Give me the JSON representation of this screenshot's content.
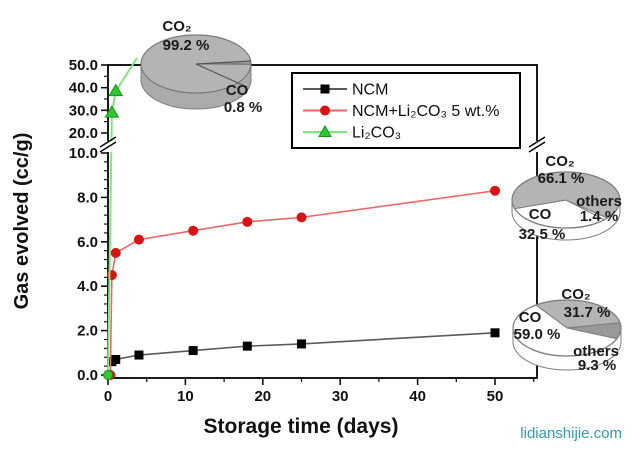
{
  "watermark": {
    "text": "lidianshijie.com",
    "color": "#2f9db4"
  },
  "colors": {
    "ncm_marker": "#000000",
    "ncm_line": "#5a5a5a",
    "ncm_li2co3_marker": "#dd1111",
    "ncm_li2co3_line": "#ef6666",
    "li2co3_marker": "#2dca2d",
    "li2co3_line": "#7de87d",
    "pie_gray": "#b4b4b4",
    "pie_dark_gray": "#999999",
    "pie_white": "#ffffff",
    "pie_edge": "#7d7d7d"
  },
  "chart_data": {
    "type": "line",
    "title": "",
    "xlabel": "Storage time (days)",
    "ylabel": "Gas evolved (cc/g)",
    "x_ticks": [
      0,
      10,
      20,
      30,
      40,
      50
    ],
    "x_range_days": [
      0,
      55
    ],
    "y_axis_break": {
      "between": [
        10,
        20
      ]
    },
    "y_ticks_lower": [
      0.0,
      2.0,
      4.0,
      6.0,
      8.0,
      10.0
    ],
    "y_ticks_upper": [
      20.0,
      30.0,
      40.0,
      50.0
    ],
    "legend_position": "top-right",
    "series": [
      {
        "name": "NCM",
        "marker": "square",
        "x": [
          0.5,
          1,
          4,
          11,
          18,
          25,
          50
        ],
        "y": [
          0.6,
          0.7,
          0.9,
          1.1,
          1.3,
          1.4,
          1.9
        ]
      },
      {
        "name": "NCM+Li₂CO₃ 5 wt.%",
        "marker": "circle",
        "x": [
          0.3,
          0.5,
          1,
          4,
          11,
          18,
          25,
          50
        ],
        "y": [
          0,
          4.5,
          5.5,
          6.1,
          6.5,
          6.9,
          7.1,
          8.3
        ]
      },
      {
        "name": "Li₂CO₃",
        "marker": "triangle",
        "x": [
          0,
          0.5,
          1
        ],
        "y": [
          0,
          29,
          38.5
        ],
        "continues_beyond_top": true
      }
    ]
  },
  "pies": [
    {
      "id": "pie-li2co3-gas",
      "slices": [
        {
          "label": "CO₂",
          "value": 99.2,
          "pct_text": "99.2 %"
        },
        {
          "label": "CO",
          "value": 0.8,
          "pct_text": "0.8 %"
        }
      ]
    },
    {
      "id": "pie-ncm-li2co3-gas",
      "slices": [
        {
          "label": "CO₂",
          "value": 66.1,
          "pct_text": "66.1 %"
        },
        {
          "label": "CO",
          "value": 32.5,
          "pct_text": "32.5 %"
        },
        {
          "label": "others",
          "value": 1.4,
          "pct_text": "1.4 %"
        }
      ]
    },
    {
      "id": "pie-ncm-gas",
      "slices": [
        {
          "label": "CO₂",
          "value": 31.7,
          "pct_text": "31.7 %"
        },
        {
          "label": "CO",
          "value": 59.0,
          "pct_text": "59.0 %"
        },
        {
          "label": "others",
          "value": 9.3,
          "pct_text": "9.3 %"
        }
      ]
    }
  ]
}
